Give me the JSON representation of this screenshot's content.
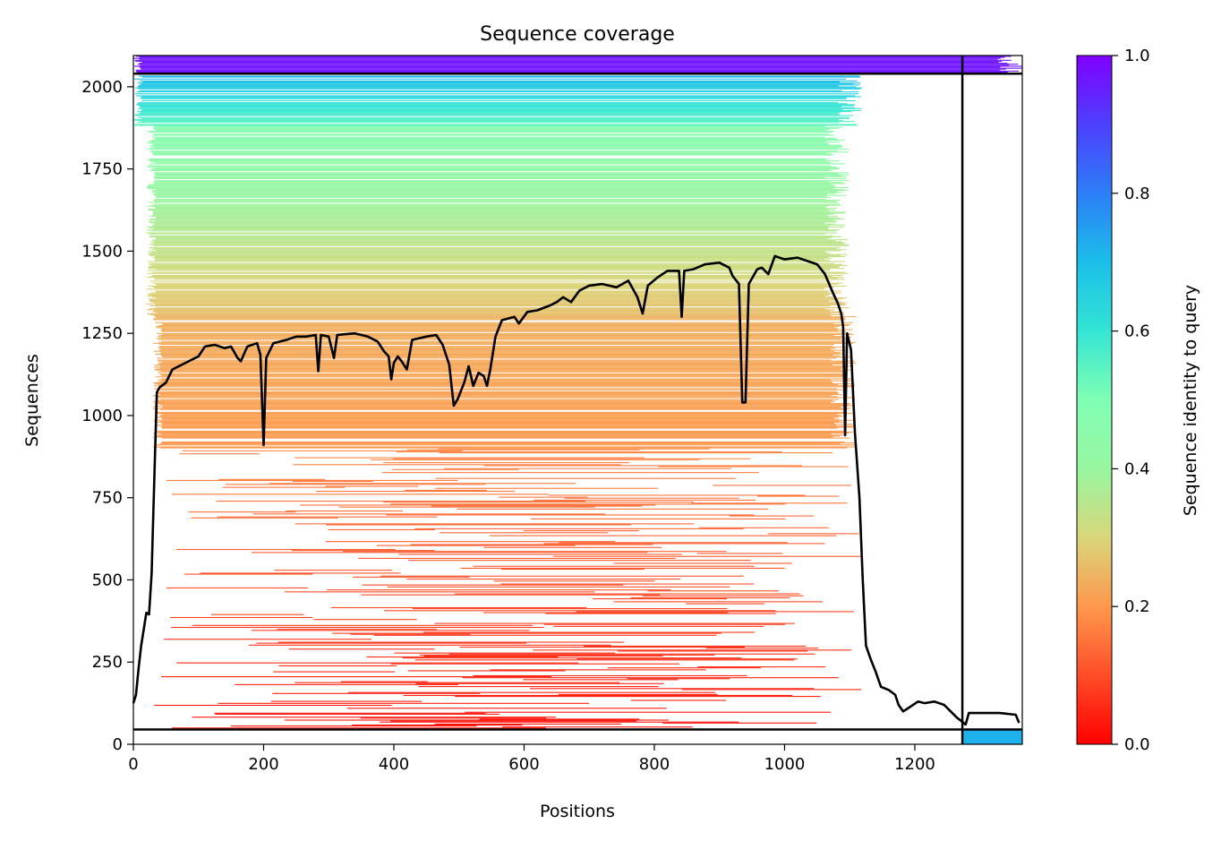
{
  "chart_data": {
    "type": "heatmap",
    "title": "Sequence coverage",
    "xlabel": "Positions",
    "ylabel": "Sequences",
    "xlim": [
      0,
      1365
    ],
    "ylim": [
      0,
      2095
    ],
    "x_ticks": [
      0,
      200,
      400,
      600,
      800,
      1000,
      1200
    ],
    "y_ticks": [
      0,
      250,
      500,
      750,
      1000,
      1250,
      1500,
      1750,
      2000
    ],
    "grid": false,
    "colormap": "rainbow_r",
    "colorbar": {
      "label": "Sequence identity to query",
      "range": [
        0.0,
        1.0
      ],
      "ticks": [
        "0.0",
        "0.2",
        "0.4",
        "0.6",
        "0.8",
        "1.0"
      ]
    },
    "chain_boundaries": {
      "x": [
        1273
      ],
      "y": [
        45,
        2040
      ]
    },
    "coverage_line": {
      "name": "coverage",
      "color": "#000000",
      "points": [
        [
          0,
          125
        ],
        [
          4,
          150
        ],
        [
          8,
          230
        ],
        [
          12,
          300
        ],
        [
          16,
          350
        ],
        [
          20,
          400
        ],
        [
          24,
          395
        ],
        [
          28,
          520
        ],
        [
          32,
          800
        ],
        [
          36,
          1070
        ],
        [
          40,
          1085
        ],
        [
          50,
          1100
        ],
        [
          60,
          1140
        ],
        [
          75,
          1155
        ],
        [
          90,
          1170
        ],
        [
          100,
          1180
        ],
        [
          110,
          1210
        ],
        [
          125,
          1215
        ],
        [
          140,
          1205
        ],
        [
          150,
          1210
        ],
        [
          160,
          1175
        ],
        [
          165,
          1165
        ],
        [
          175,
          1210
        ],
        [
          190,
          1220
        ],
        [
          195,
          1185
        ],
        [
          200,
          910
        ],
        [
          204,
          1175
        ],
        [
          215,
          1220
        ],
        [
          235,
          1230
        ],
        [
          250,
          1240
        ],
        [
          265,
          1240
        ],
        [
          280,
          1245
        ],
        [
          284,
          1135
        ],
        [
          288,
          1245
        ],
        [
          300,
          1240
        ],
        [
          308,
          1175
        ],
        [
          313,
          1245
        ],
        [
          340,
          1250
        ],
        [
          360,
          1240
        ],
        [
          375,
          1225
        ],
        [
          385,
          1195
        ],
        [
          392,
          1180
        ],
        [
          396,
          1110
        ],
        [
          400,
          1160
        ],
        [
          406,
          1180
        ],
        [
          412,
          1165
        ],
        [
          420,
          1140
        ],
        [
          428,
          1230
        ],
        [
          450,
          1240
        ],
        [
          465,
          1245
        ],
        [
          475,
          1215
        ],
        [
          485,
          1155
        ],
        [
          492,
          1030
        ],
        [
          498,
          1050
        ],
        [
          508,
          1100
        ],
        [
          515,
          1150
        ],
        [
          522,
          1090
        ],
        [
          530,
          1130
        ],
        [
          538,
          1120
        ],
        [
          543,
          1090
        ],
        [
          548,
          1140
        ],
        [
          556,
          1240
        ],
        [
          566,
          1290
        ],
        [
          585,
          1300
        ],
        [
          592,
          1280
        ],
        [
          605,
          1315
        ],
        [
          620,
          1320
        ],
        [
          640,
          1335
        ],
        [
          650,
          1345
        ],
        [
          660,
          1360
        ],
        [
          672,
          1345
        ],
        [
          685,
          1380
        ],
        [
          700,
          1395
        ],
        [
          720,
          1400
        ],
        [
          742,
          1390
        ],
        [
          760,
          1410
        ],
        [
          774,
          1360
        ],
        [
          782,
          1310
        ],
        [
          790,
          1395
        ],
        [
          805,
          1420
        ],
        [
          820,
          1440
        ],
        [
          838,
          1440
        ],
        [
          842,
          1300
        ],
        [
          846,
          1440
        ],
        [
          860,
          1445
        ],
        [
          878,
          1460
        ],
        [
          900,
          1465
        ],
        [
          915,
          1450
        ],
        [
          920,
          1425
        ],
        [
          930,
          1400
        ],
        [
          935,
          1040
        ],
        [
          940,
          1040
        ],
        [
          945,
          1400
        ],
        [
          958,
          1445
        ],
        [
          965,
          1450
        ],
        [
          975,
          1430
        ],
        [
          985,
          1485
        ],
        [
          1000,
          1475
        ],
        [
          1020,
          1480
        ],
        [
          1035,
          1470
        ],
        [
          1050,
          1460
        ],
        [
          1062,
          1430
        ],
        [
          1075,
          1370
        ],
        [
          1082,
          1340
        ],
        [
          1087,
          1310
        ],
        [
          1090,
          1270
        ],
        [
          1093,
          940
        ],
        [
          1096,
          1250
        ],
        [
          1102,
          1200
        ],
        [
          1108,
          950
        ],
        [
          1115,
          750
        ],
        [
          1120,
          500
        ],
        [
          1125,
          300
        ],
        [
          1132,
          260
        ],
        [
          1140,
          220
        ],
        [
          1148,
          175
        ],
        [
          1160,
          165
        ],
        [
          1170,
          150
        ],
        [
          1175,
          120
        ],
        [
          1182,
          100
        ],
        [
          1190,
          110
        ],
        [
          1205,
          130
        ],
        [
          1215,
          125
        ],
        [
          1230,
          130
        ],
        [
          1245,
          120
        ],
        [
          1255,
          100
        ],
        [
          1265,
          80
        ],
        [
          1272,
          70
        ],
        [
          1278,
          60
        ],
        [
          1283,
          95
        ],
        [
          1300,
          95
        ],
        [
          1330,
          95
        ],
        [
          1355,
          90
        ],
        [
          1360,
          65
        ]
      ]
    }
  }
}
